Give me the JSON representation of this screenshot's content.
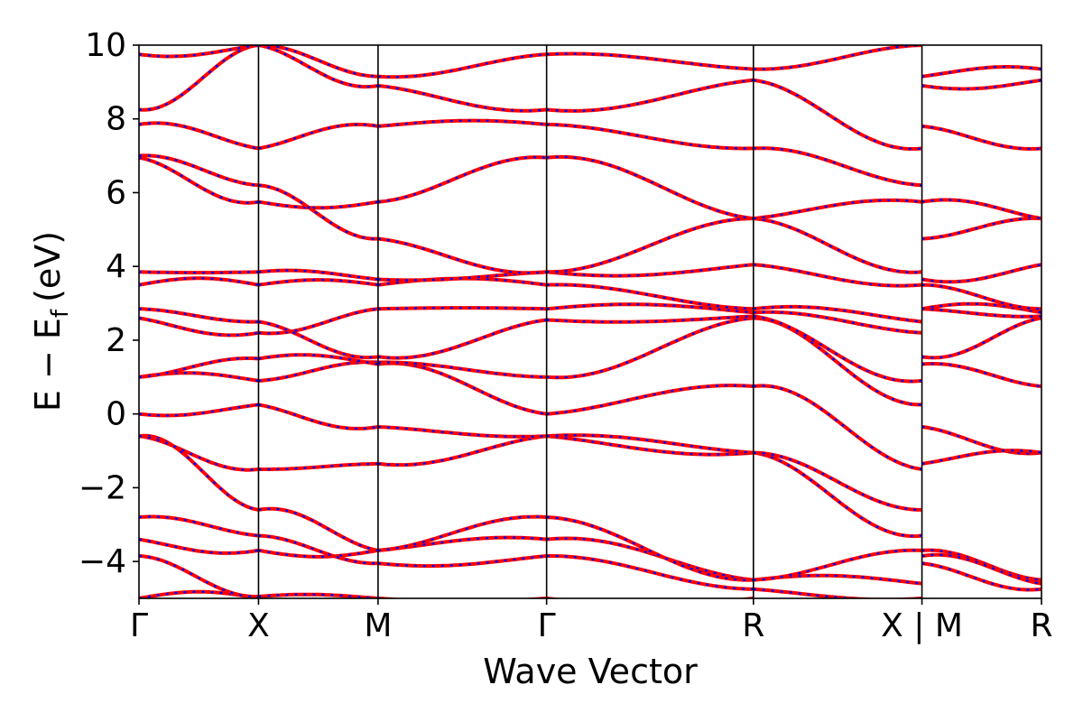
{
  "chart_data": {
    "type": "line",
    "xlabel": "Wave Vector",
    "ylabel_main": "E − E",
    "ylabel_sub": "f",
    "ylabel_unit": "(eV)",
    "ylim": [
      -5,
      10
    ],
    "yticks": [
      {
        "value": 10,
        "label": "10"
      },
      {
        "value": 8,
        "label": "8"
      },
      {
        "value": 6,
        "label": "6"
      },
      {
        "value": 4,
        "label": "4"
      },
      {
        "value": 2,
        "label": "2"
      },
      {
        "value": 0,
        "label": "0"
      },
      {
        "value": -2,
        "label": "−2"
      },
      {
        "value": -4,
        "label": "−4"
      }
    ],
    "xlim": [
      0,
      7.55
    ],
    "kpoints": [
      {
        "x": 0,
        "label": "Γ"
      },
      {
        "x": 1.0,
        "label": "X"
      },
      {
        "x": 2.0,
        "label": "M"
      },
      {
        "x": 3.41,
        "label": "Γ"
      },
      {
        "x": 5.14,
        "label": "R"
      },
      {
        "x": 6.55,
        "label": "X | M"
      },
      {
        "x": 7.55,
        "label": "R"
      }
    ],
    "grid": false,
    "line_colors": {
      "solid": "#ff0000",
      "dashed": "#0000ff"
    },
    "segments": [
      {
        "from": "Γ",
        "to": "X",
        "bands": [
          [
            -5.0,
            -5.0
          ],
          [
            -3.85,
            -4.95
          ],
          [
            -3.4,
            -3.7
          ],
          [
            -2.8,
            -3.3
          ],
          [
            -0.6,
            -2.6
          ],
          [
            -0.6,
            -1.5
          ],
          [
            0.0,
            0.25
          ],
          [
            1.0,
            0.9
          ],
          [
            1.0,
            1.5
          ],
          [
            2.6,
            2.2
          ],
          [
            2.85,
            2.5
          ],
          [
            3.5,
            3.5
          ],
          [
            3.85,
            3.85
          ],
          [
            6.95,
            5.75
          ],
          [
            7.0,
            6.2
          ],
          [
            7.85,
            7.2
          ],
          [
            8.25,
            10.0
          ],
          [
            9.75,
            10.0
          ]
        ]
      },
      {
        "from": "X",
        "to": "M",
        "bands": [
          [
            -4.95,
            -5.0
          ],
          [
            -3.7,
            -3.7
          ],
          [
            -3.3,
            -4.05
          ],
          [
            -2.6,
            -3.7
          ],
          [
            -1.5,
            -1.35
          ],
          [
            0.25,
            -0.35
          ],
          [
            0.9,
            1.4
          ],
          [
            1.5,
            1.35
          ],
          [
            2.2,
            2.85
          ],
          [
            2.5,
            1.55
          ],
          [
            3.5,
            3.5
          ],
          [
            3.85,
            3.65
          ],
          [
            5.75,
            5.75
          ],
          [
            6.2,
            4.75
          ],
          [
            7.2,
            7.8
          ],
          [
            10.0,
            9.15
          ],
          [
            10.0,
            8.9
          ]
        ]
      },
      {
        "from": "M",
        "to": "Γ",
        "bands": [
          [
            -5.0,
            -5.0
          ],
          [
            -4.05,
            -3.85
          ],
          [
            -3.7,
            -3.4
          ],
          [
            -3.7,
            -2.8
          ],
          [
            -1.35,
            -0.6
          ],
          [
            -0.35,
            -0.6
          ],
          [
            1.35,
            0.0
          ],
          [
            1.4,
            1.0
          ],
          [
            1.55,
            2.55
          ],
          [
            2.85,
            2.85
          ],
          [
            3.5,
            3.5
          ],
          [
            3.65,
            3.85
          ],
          [
            4.75,
            3.85
          ],
          [
            5.75,
            6.95
          ],
          [
            7.8,
            7.85
          ],
          [
            8.9,
            8.25
          ],
          [
            9.15,
            9.75
          ]
        ]
      },
      {
        "from": "Γ",
        "to": "R",
        "bands": [
          [
            -5.0,
            -5.0
          ],
          [
            -3.85,
            -4.75
          ],
          [
            -3.4,
            -4.5
          ],
          [
            -2.8,
            -4.5
          ],
          [
            -0.6,
            -1.05
          ],
          [
            -0.6,
            -1.05
          ],
          [
            0.0,
            0.75
          ],
          [
            1.0,
            2.6
          ],
          [
            2.55,
            2.65
          ],
          [
            2.85,
            2.75
          ],
          [
            3.5,
            2.85
          ],
          [
            3.85,
            4.05
          ],
          [
            3.85,
            5.3
          ],
          [
            6.95,
            5.3
          ],
          [
            7.85,
            7.2
          ],
          [
            8.25,
            9.05
          ],
          [
            9.75,
            9.35
          ]
        ]
      },
      {
        "from": "R",
        "to": "X",
        "bands": [
          [
            -4.75,
            -5.0
          ],
          [
            -4.5,
            -4.6
          ],
          [
            -4.5,
            -3.7
          ],
          [
            -1.05,
            -3.3
          ],
          [
            -1.05,
            -2.6
          ],
          [
            0.75,
            -1.5
          ],
          [
            2.6,
            0.25
          ],
          [
            2.65,
            0.9
          ],
          [
            2.75,
            2.2
          ],
          [
            2.85,
            2.5
          ],
          [
            4.05,
            3.5
          ],
          [
            5.3,
            3.85
          ],
          [
            5.3,
            5.75
          ],
          [
            7.2,
            6.2
          ],
          [
            9.05,
            7.2
          ],
          [
            9.35,
            10.0
          ]
        ]
      },
      {
        "from": "M",
        "to": "R",
        "bands": [
          [
            -3.7,
            -4.5
          ],
          [
            -3.85,
            -4.6
          ],
          [
            -4.05,
            -4.75
          ],
          [
            -0.35,
            -1.05
          ],
          [
            -1.35,
            -1.05
          ],
          [
            1.35,
            0.75
          ],
          [
            1.55,
            2.6
          ],
          [
            2.85,
            2.65
          ],
          [
            2.85,
            2.75
          ],
          [
            3.5,
            2.85
          ],
          [
            3.65,
            4.05
          ],
          [
            4.75,
            5.3
          ],
          [
            5.75,
            5.3
          ],
          [
            7.8,
            7.2
          ],
          [
            8.9,
            9.05
          ],
          [
            9.15,
            9.35
          ]
        ]
      }
    ]
  }
}
